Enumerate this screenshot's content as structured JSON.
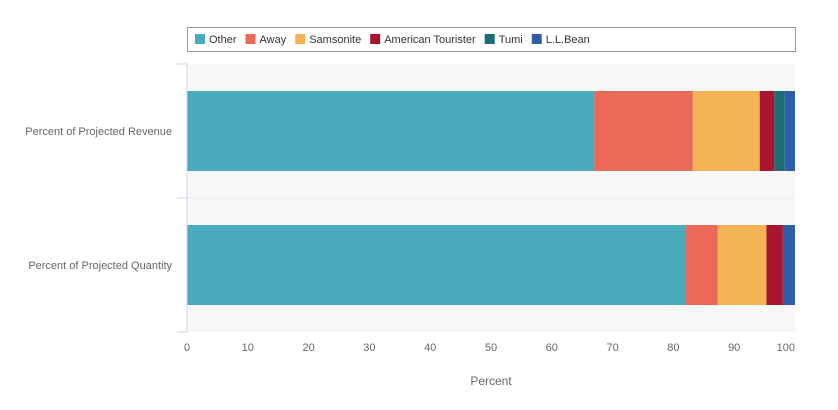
{
  "chart_data": {
    "type": "bar",
    "orientation": "horizontal",
    "stacked": true,
    "categories": [
      "Percent of Projected Revenue",
      "Percent of Projected Quantity"
    ],
    "series": [
      {
        "name": "Other",
        "color": "#4aabbe",
        "values": [
          67.0,
          82.0
        ]
      },
      {
        "name": "Away",
        "color": "#e86a57",
        "values": [
          16.2,
          5.3
        ]
      },
      {
        "name": "Samsonite",
        "color": "#f4b355",
        "values": [
          11.0,
          8.0
        ]
      },
      {
        "name": "American Tourister",
        "color": "#a8162f",
        "values": [
          2.4,
          2.7
        ]
      },
      {
        "name": "Tumi",
        "color": "#1b6e73",
        "values": [
          1.7,
          0.0
        ]
      },
      {
        "name": "L.L.Bean",
        "color": "#2e5ea8",
        "values": [
          1.7,
          2.0
        ]
      }
    ],
    "xlabel": "Percent",
    "ylabel": "",
    "xlim": [
      0,
      100
    ],
    "xticks": [
      0,
      10,
      20,
      30,
      40,
      50,
      60,
      70,
      80,
      90,
      100
    ],
    "legend_position": "top",
    "grid": false
  }
}
